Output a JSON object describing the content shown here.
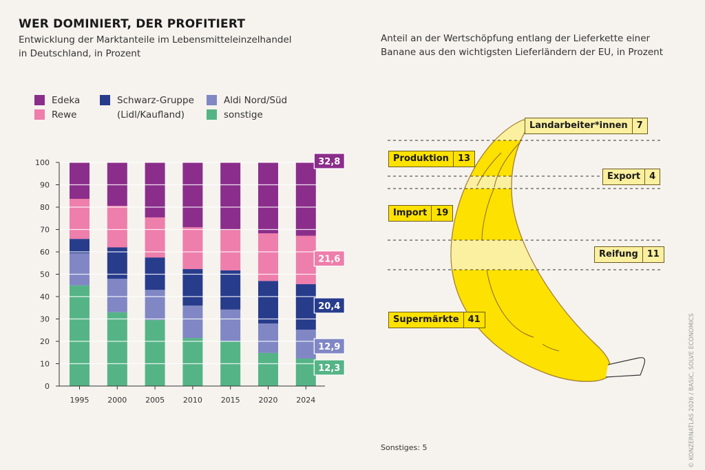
{
  "title": "WER DOMINIERT, DER PROFITIERT",
  "subtitle_line1": "Entwicklung der Marktanteile im Lebensmitteleinzelhandel",
  "subtitle_line2": "in Deutschland, in Prozent",
  "right_subtitle_line1": "Anteil an der Wertschöpfung entlang der Lieferkette einer",
  "right_subtitle_line2": "Banane aus den wichtigsten Lieferländern der EU, in Prozent",
  "legend": [
    {
      "label": "Edeka",
      "color": "#8b2e8b"
    },
    {
      "label": "Rewe",
      "color": "#ee7eab"
    },
    {
      "label": "Schwarz-Gruppe",
      "label2": "(Lidl/Kaufland)",
      "color": "#283c8c"
    },
    {
      "label": "Aldi Nord/Süd",
      "color": "#8087c4"
    },
    {
      "label": "sonstige",
      "color": "#55b486"
    }
  ],
  "chart_data": [
    {
      "type": "bar",
      "stacked": true,
      "title": "Entwicklung der Marktanteile im Lebensmitteleinzelhandel in Deutschland, in Prozent",
      "xlabel": "",
      "ylabel": "",
      "ylim": [
        0,
        100
      ],
      "yticks": [
        0,
        10,
        20,
        30,
        40,
        50,
        60,
        70,
        80,
        90,
        100
      ],
      "grid": true,
      "legend_position": "top-left",
      "categories": [
        "1995",
        "2000",
        "2005",
        "2010",
        "2015",
        "2020",
        "2024"
      ],
      "series": [
        {
          "name": "sonstige",
          "color": "#55b486",
          "values": [
            45.0,
            33.0,
            29.5,
            21.5,
            20.0,
            14.8,
            12.3
          ]
        },
        {
          "name": "Aldi Nord/Süd",
          "color": "#8087c4",
          "values": [
            14.4,
            15.0,
            13.5,
            14.5,
            14.2,
            13.2,
            12.9
          ]
        },
        {
          "name": "Schwarz-Gruppe (Lidl/Kaufland)",
          "color": "#283c8c",
          "values": [
            6.4,
            14.0,
            14.5,
            16.3,
            17.5,
            19.0,
            20.4
          ]
        },
        {
          "name": "Rewe",
          "color": "#ee7eab",
          "values": [
            17.9,
            18.6,
            17.9,
            18.7,
            18.3,
            21.3,
            21.6
          ]
        },
        {
          "name": "Edeka",
          "color": "#8b2e8b",
          "values": [
            16.3,
            19.4,
            24.6,
            29.0,
            30.0,
            31.7,
            32.8
          ]
        }
      ],
      "annotations": [
        {
          "series": "Edeka",
          "category": "2024",
          "text": "32,8"
        },
        {
          "series": "Rewe",
          "category": "2024",
          "text": "21,6"
        },
        {
          "series": "Schwarz-Gruppe (Lidl/Kaufland)",
          "category": "2024",
          "text": "20,4"
        },
        {
          "series": "Aldi Nord/Süd",
          "category": "2024",
          "text": "12,9"
        },
        {
          "series": "sonstige",
          "category": "2024",
          "text": "12,3"
        }
      ]
    },
    {
      "type": "table",
      "title": "Anteil an der Wertschöpfung entlang der Lieferkette einer Banane aus den wichtigsten Lieferländern der EU, in Prozent",
      "categories": [
        "Landarbeiter*innen",
        "Produktion",
        "Export",
        "Import",
        "Reifung",
        "Supermärkte",
        "Sonstiges"
      ],
      "values": [
        7,
        13,
        4,
        19,
        11,
        41,
        5
      ],
      "footnote": "Sonstiges: 5"
    }
  ],
  "banana_labels": [
    {
      "label": "Landarbeiter*innen",
      "value": "7",
      "style": "light"
    },
    {
      "label": "Produktion",
      "value": "13",
      "style": "bright"
    },
    {
      "label": "Export",
      "value": "4",
      "style": "light"
    },
    {
      "label": "Import",
      "value": "19",
      "style": "bright"
    },
    {
      "label": "Reifung",
      "value": "11",
      "style": "light"
    },
    {
      "label": "Supermärkte",
      "value": "41",
      "style": "bright"
    }
  ],
  "colors": {
    "bright_yellow": "#fde100",
    "light_yellow": "#fbf0a0",
    "background": "#f6f3ee"
  },
  "footnote": "Sonstiges: 5",
  "credit": "© KONZERNATLAS 2026 / BASIC, SOLVE ECONOMICS"
}
